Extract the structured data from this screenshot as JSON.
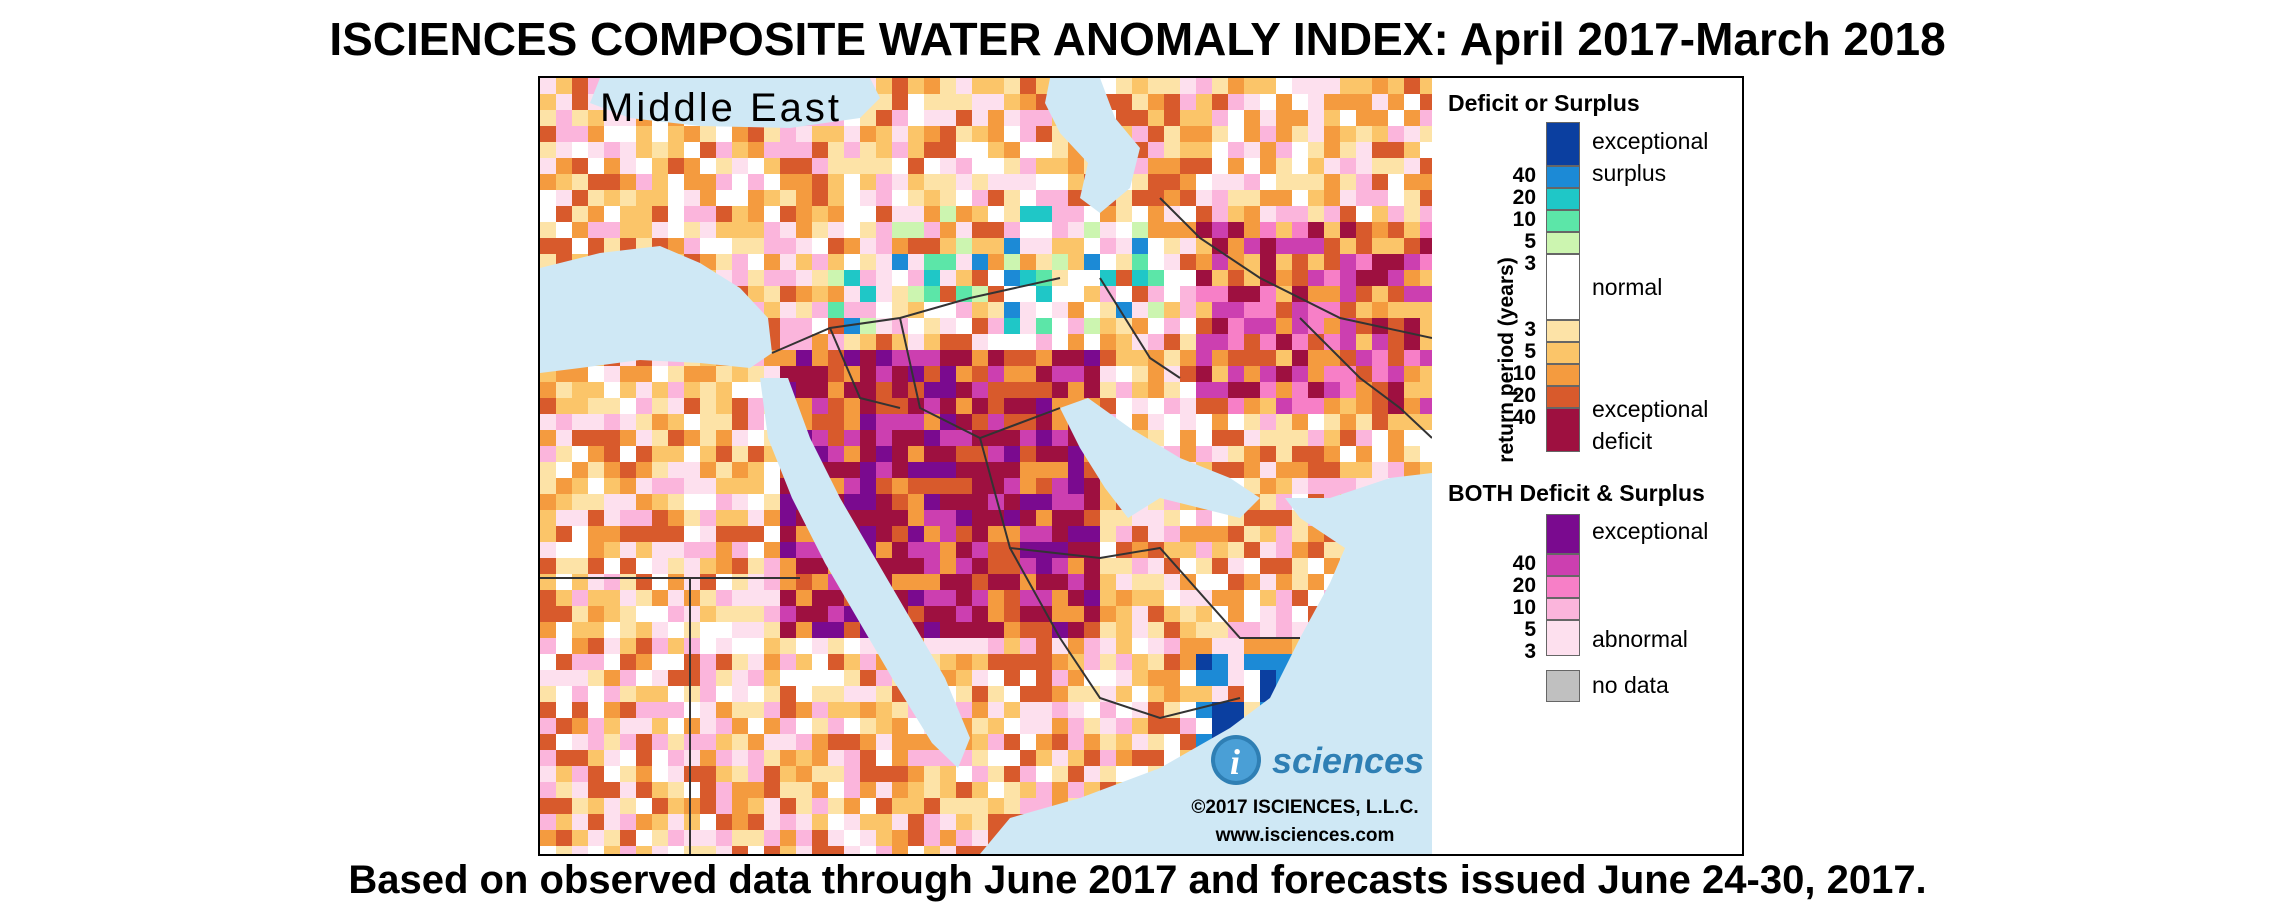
{
  "title": "ISCIENCES COMPOSITE WATER ANOMALY INDEX: April 2017-March 2018",
  "subtitle": "Based on observed data through June 2017 and forecasts issued June 24-30, 2017.",
  "map": {
    "region_label": "Middle East",
    "logo_text": "sciences",
    "copyright": "©2017 ISCIENCES, L.L.C.",
    "website": "www.isciences.com",
    "colors": {
      "water": "#cfe8f5",
      "normal": "#ffffff",
      "deficit_3": "#fde3a7",
      "deficit_5": "#fbc569",
      "deficit_10": "#f49b3f",
      "deficit_20": "#d85a2c",
      "deficit_40": "#9e1040",
      "surplus_3": "#ccf5b0",
      "surplus_5": "#5ce6a8",
      "surplus_10": "#1fc7c7",
      "surplus_20": "#1c8ad6",
      "surplus_40": "#0b3fa0",
      "both_3": "#fde0ee",
      "both_5": "#fbb5dc",
      "both_10": "#f77fc7",
      "both_20": "#cc3fb0",
      "both_40": "#7a0a8f",
      "no_data": "#c0c0c0"
    }
  },
  "legend": {
    "section1_title": "Deficit or Surplus",
    "axis_label": "return period (years)",
    "surplus_ticks": [
      "40",
      "20",
      "10",
      "5",
      "3"
    ],
    "deficit_ticks": [
      "3",
      "5",
      "10",
      "20",
      "40"
    ],
    "exceptional_surplus_line1": "exceptional",
    "exceptional_surplus_line2": "surplus",
    "normal_label": "normal",
    "exceptional_deficit_line1": "exceptional",
    "exceptional_deficit_line2": "deficit",
    "section2_title": "BOTH Deficit & Surplus",
    "both_ticks": [
      "40",
      "20",
      "10",
      "5",
      "3"
    ],
    "both_exceptional": "exceptional",
    "both_abnormal": "abnormal",
    "no_data_label": "no data"
  }
}
